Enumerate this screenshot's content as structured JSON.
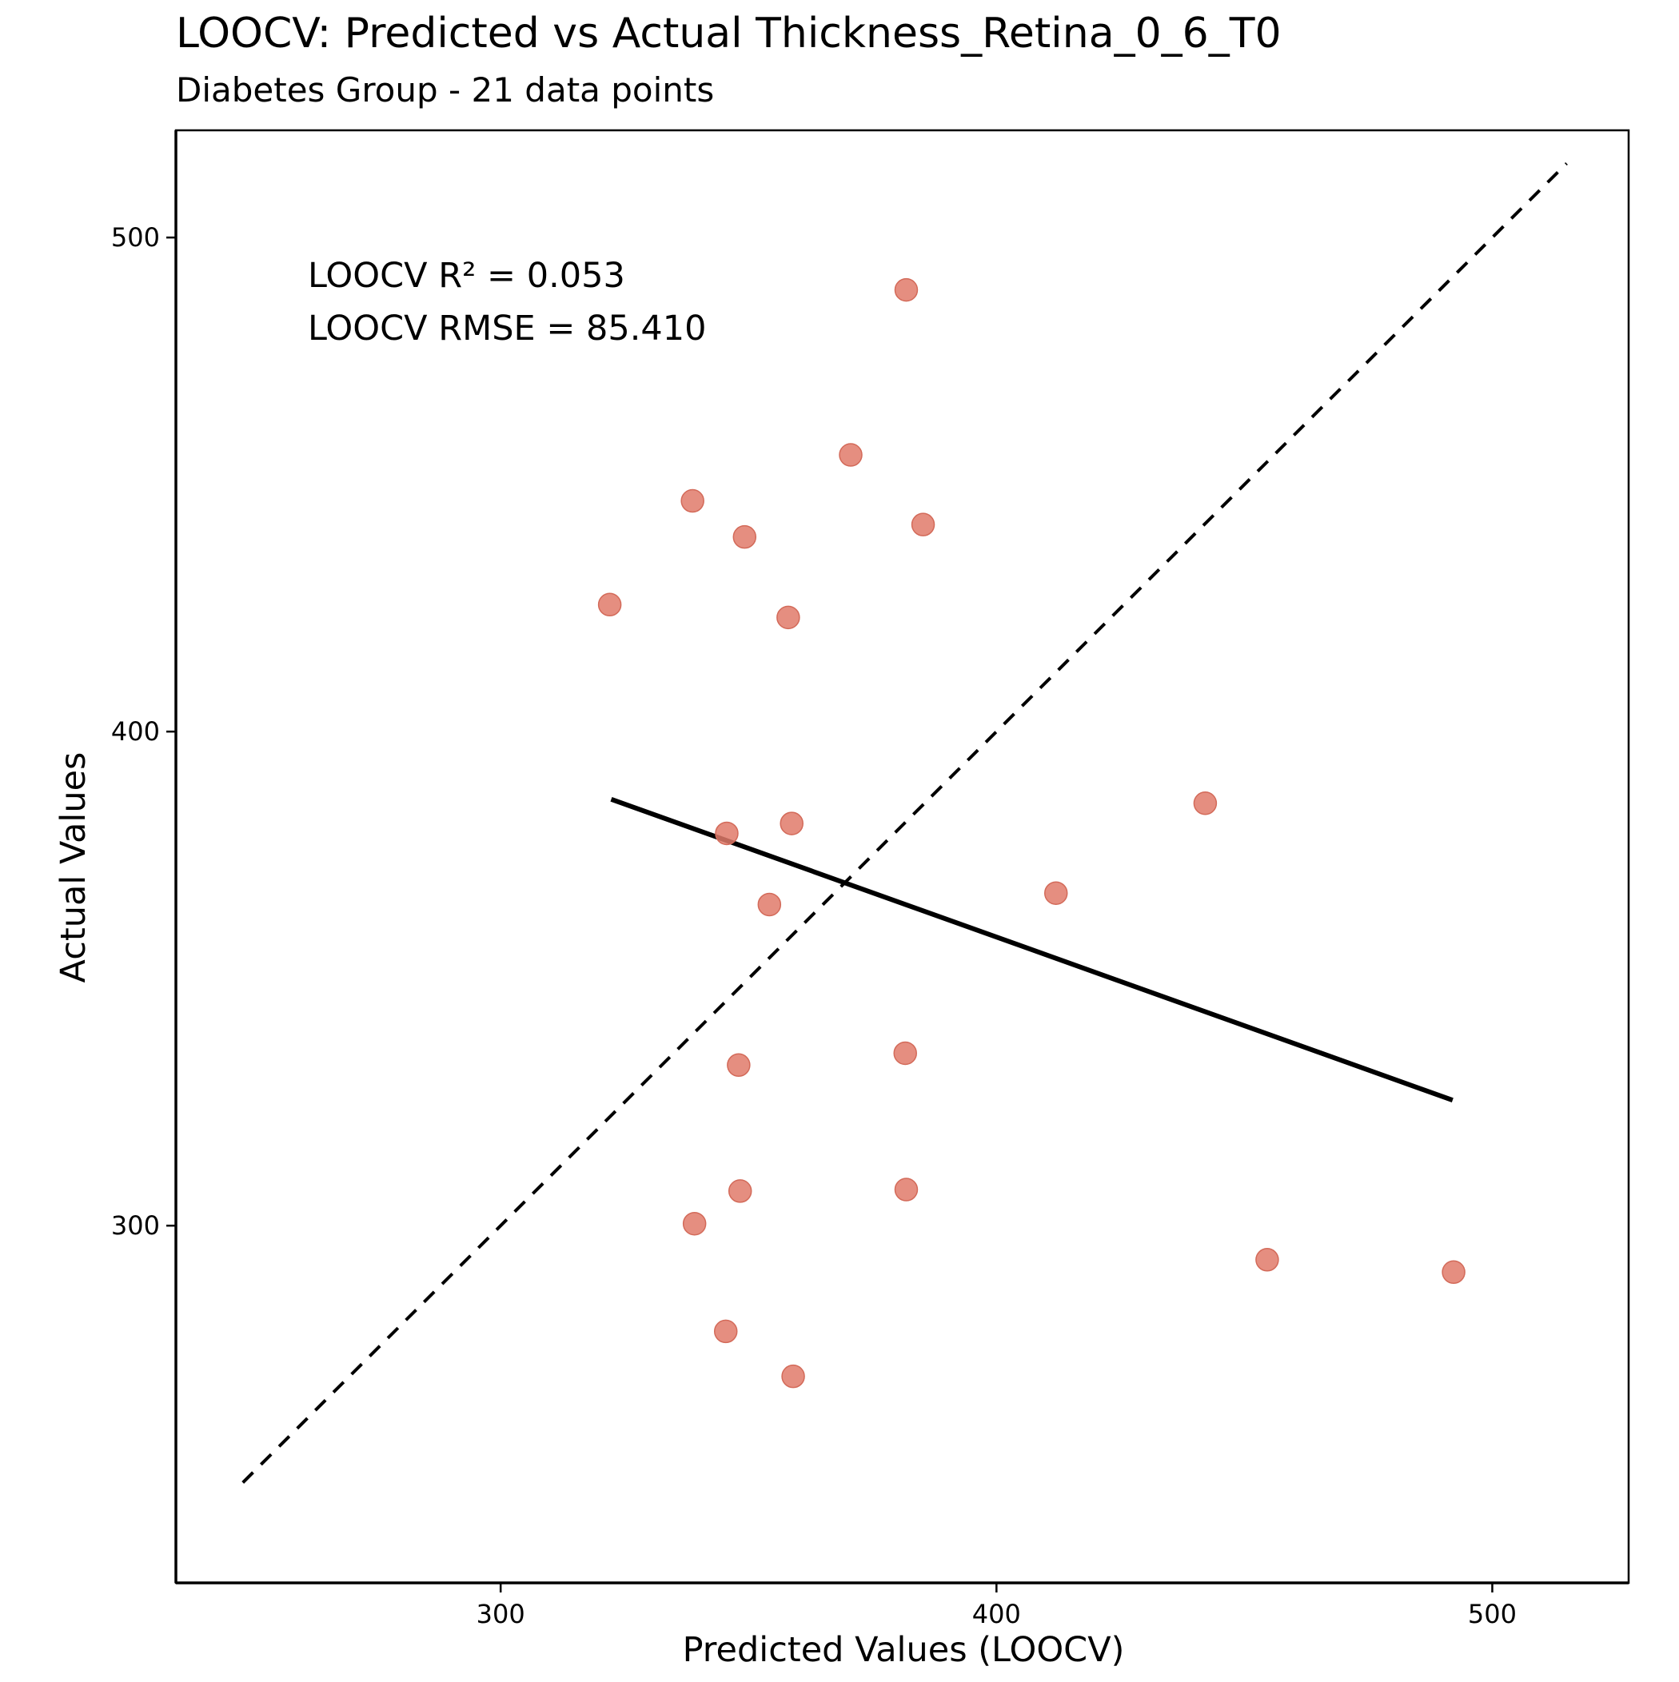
{
  "chart_data": {
    "type": "scatter",
    "title": "LOOCV: Predicted vs Actual Thickness_Retina_0_6_T0",
    "subtitle": "Diabetes Group - 21 data points",
    "xlabel": "Predicted Values (LOOCV)",
    "ylabel": "Actual Values",
    "xlim": [
      234.5,
      527.5
    ],
    "ylim": [
      227.7,
      521.7
    ],
    "xticks": [
      300,
      400,
      500
    ],
    "yticks": [
      300,
      400,
      500
    ],
    "grid": false,
    "point_color": "#e07a6a",
    "annotations": [
      "LOOCV R² = 0.053",
      "LOOCV RMSE = 85.410"
    ],
    "identity_line": {
      "x": [
        248,
        515
      ],
      "y": [
        248,
        515
      ],
      "style": "dashed"
    },
    "fit_line": {
      "x": [
        322.3,
        492.0
      ],
      "y": [
        386.3,
        325.4
      ],
      "style": "solid"
    },
    "series": [
      {
        "points": [
          {
            "x": 381.8,
            "y": 489.4
          },
          {
            "x": 370.6,
            "y": 456.0
          },
          {
            "x": 338.7,
            "y": 446.7
          },
          {
            "x": 385.2,
            "y": 441.9
          },
          {
            "x": 349.2,
            "y": 439.4
          },
          {
            "x": 322.0,
            "y": 425.7
          },
          {
            "x": 358.0,
            "y": 423.1
          },
          {
            "x": 442.1,
            "y": 385.5
          },
          {
            "x": 358.7,
            "y": 381.4
          },
          {
            "x": 345.6,
            "y": 379.4
          },
          {
            "x": 412.0,
            "y": 367.3
          },
          {
            "x": 354.2,
            "y": 365.0
          },
          {
            "x": 381.6,
            "y": 334.9
          },
          {
            "x": 348.0,
            "y": 332.5
          },
          {
            "x": 381.8,
            "y": 307.3
          },
          {
            "x": 348.3,
            "y": 307.0
          },
          {
            "x": 339.1,
            "y": 300.4
          },
          {
            "x": 454.6,
            "y": 293.1
          },
          {
            "x": 492.2,
            "y": 290.6
          },
          {
            "x": 345.4,
            "y": 278.6
          },
          {
            "x": 359.0,
            "y": 269.5
          }
        ]
      }
    ]
  }
}
